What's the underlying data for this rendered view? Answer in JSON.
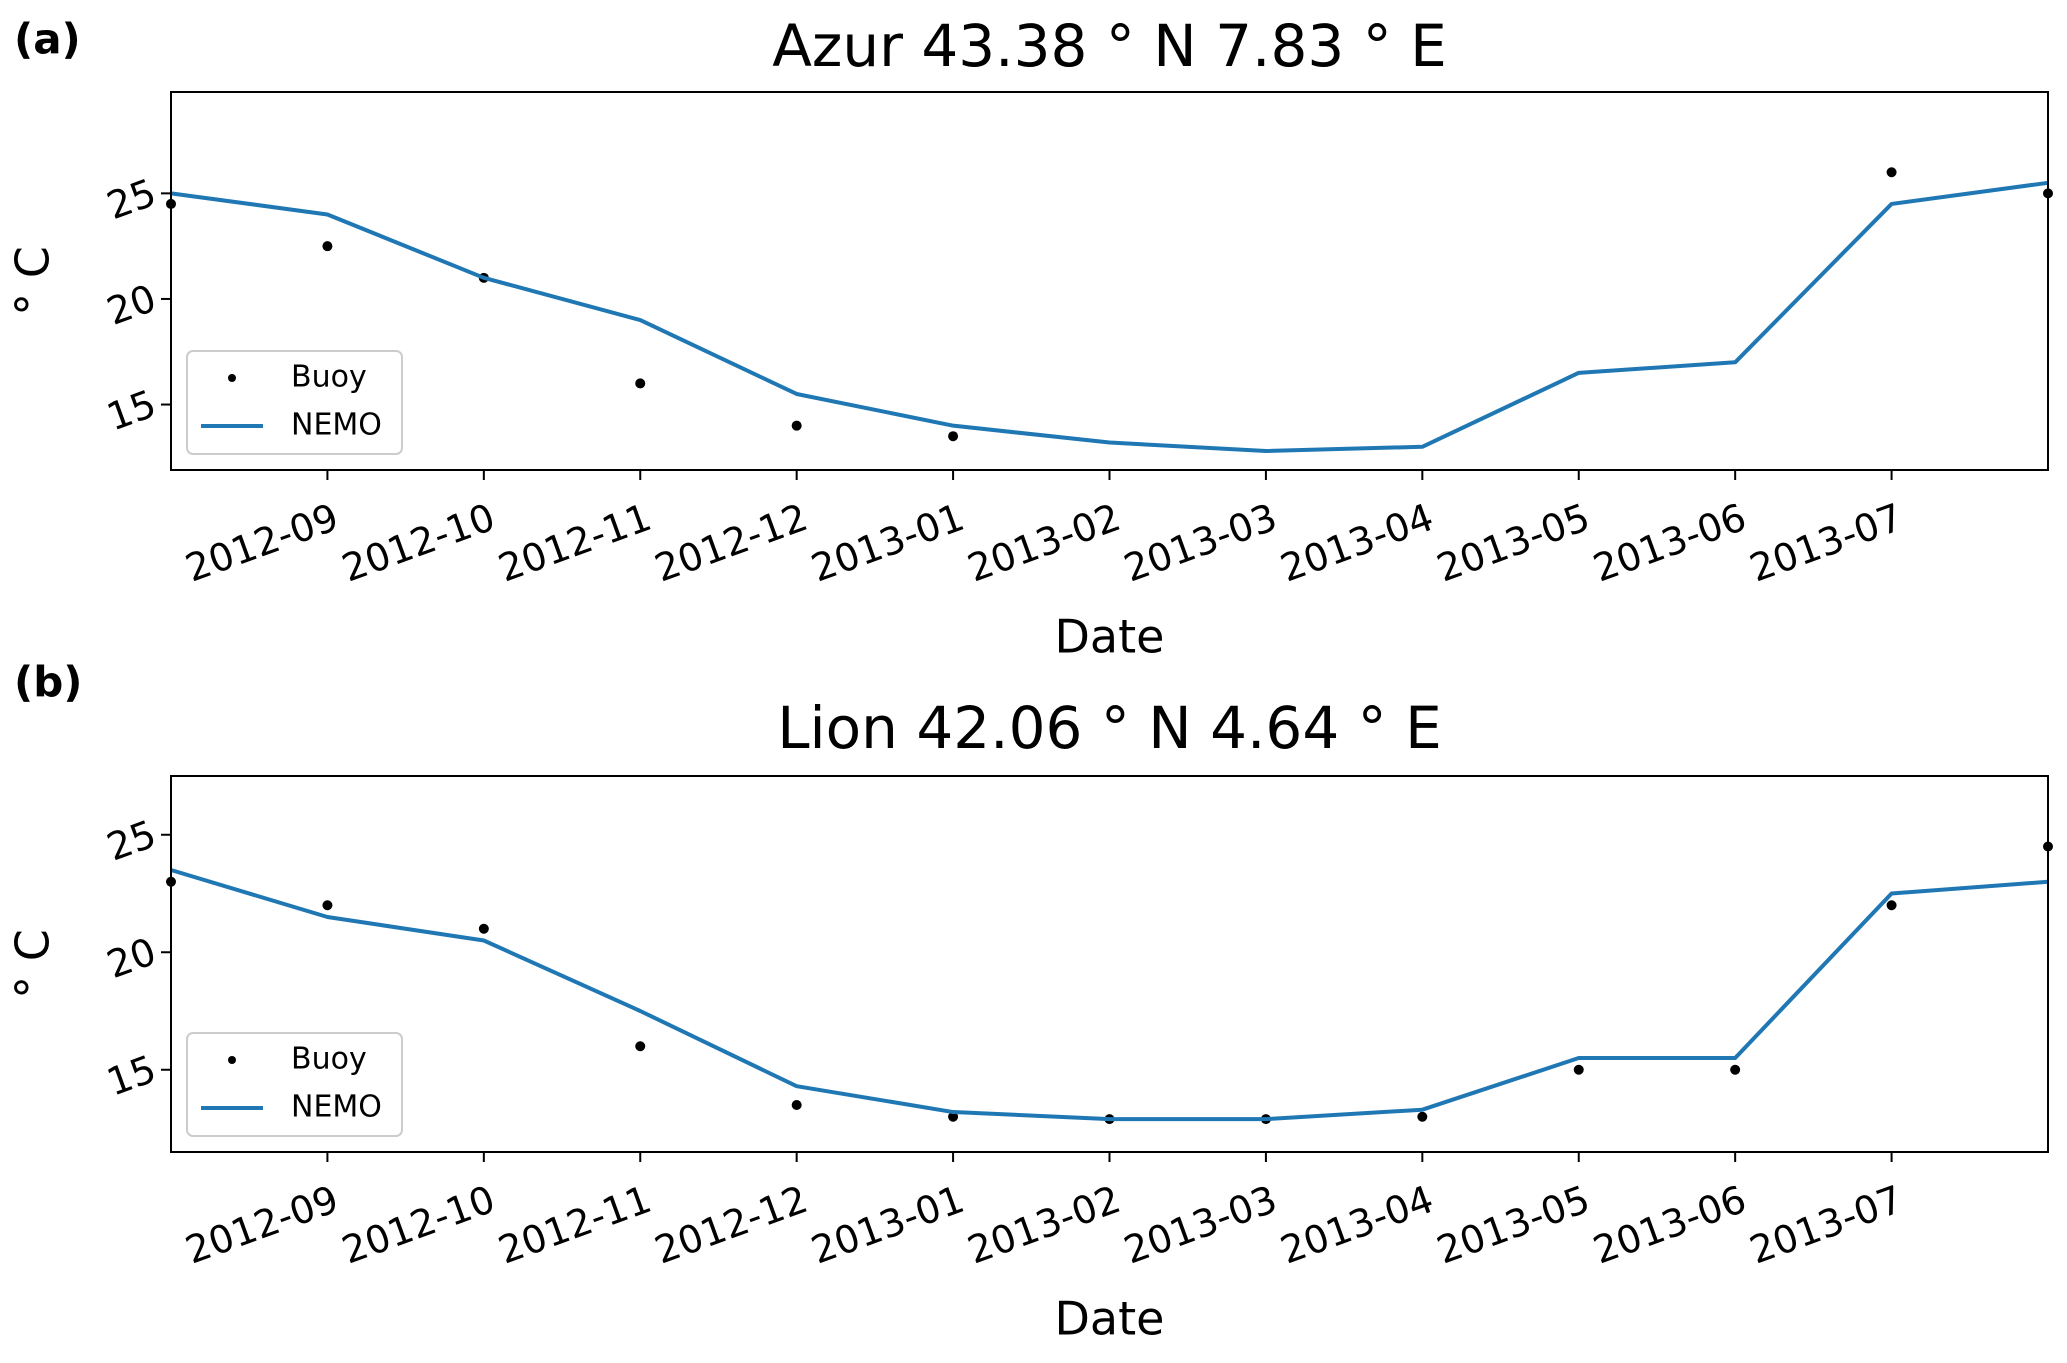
{
  "chart_data": [
    {
      "type": "line",
      "panel_label": "(a)",
      "title": "Azur 43.38 ° N 7.83 ° E",
      "x_label": "Date",
      "y_label": "° C",
      "x": [
        "2012-08",
        "2012-09",
        "2012-10",
        "2012-11",
        "2012-12",
        "2013-01",
        "2013-02",
        "2013-03",
        "2013-04",
        "2013-05",
        "2013-06",
        "2013-07",
        "2013-08"
      ],
      "series": [
        {
          "name": "Buoy",
          "color": "#000000",
          "style": "points",
          "values": [
            24.5,
            22.5,
            21,
            16,
            14,
            13.5,
            null,
            null,
            null,
            null,
            null,
            26,
            25
          ]
        },
        {
          "name": "NEMO",
          "color": "#1f77b4",
          "style": "line",
          "values": [
            25,
            24,
            21,
            19,
            15.5,
            14,
            13.2,
            12.8,
            13,
            16.5,
            17,
            24.5,
            25.5
          ]
        }
      ],
      "xlim": [
        "2012-08",
        "2013-08"
      ],
      "xticks": [
        "2012-09",
        "2012-10",
        "2012-11",
        "2012-12",
        "2013-01",
        "2013-02",
        "2013-03",
        "2013-04",
        "2013-05",
        "2013-06",
        "2013-07"
      ],
      "ylim": [
        11.9,
        29.8
      ],
      "yticks": [
        15,
        20,
        25
      ],
      "legend": "lower left"
    },
    {
      "type": "line",
      "panel_label": "(b)",
      "title": "Lion 42.06 ° N 4.64 ° E",
      "x_label": "Date",
      "y_label": "° C",
      "x": [
        "2012-08",
        "2012-09",
        "2012-10",
        "2012-11",
        "2012-12",
        "2013-01",
        "2013-02",
        "2013-03",
        "2013-04",
        "2013-05",
        "2013-06",
        "2013-07",
        "2013-08"
      ],
      "series": [
        {
          "name": "Buoy",
          "color": "#000000",
          "style": "points",
          "values": [
            23,
            22,
            21,
            16,
            13.5,
            13,
            12.9,
            12.9,
            13,
            15,
            15,
            22,
            24.5
          ]
        },
        {
          "name": "NEMO",
          "color": "#1f77b4",
          "style": "line",
          "values": [
            23.5,
            21.5,
            20.5,
            17.5,
            14.3,
            13.2,
            12.9,
            12.9,
            13.3,
            15.5,
            15.5,
            22.5,
            23
          ]
        }
      ],
      "xlim": [
        "2012-08",
        "2013-08"
      ],
      "xticks": [
        "2012-09",
        "2012-10",
        "2012-11",
        "2012-12",
        "2013-01",
        "2013-02",
        "2013-03",
        "2013-04",
        "2013-05",
        "2013-06",
        "2013-07"
      ],
      "ylim": [
        11.5,
        27.5
      ],
      "yticks": [
        15,
        20,
        25
      ],
      "legend": "lower left"
    }
  ]
}
